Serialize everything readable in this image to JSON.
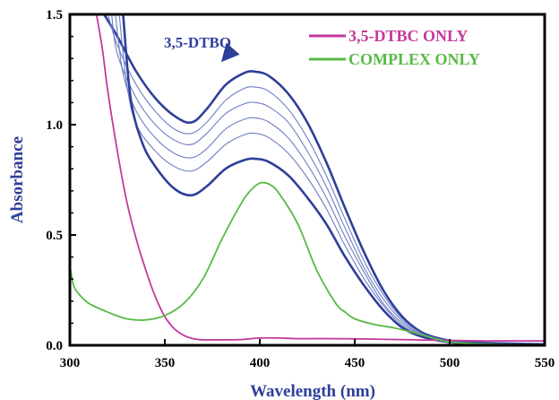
{
  "chart_data": {
    "type": "line",
    "title": "",
    "xlabel": "Wavelength (nm)",
    "ylabel": "Absorbance",
    "xlim": [
      300,
      550
    ],
    "ylim": [
      0.0,
      1.5
    ],
    "xticks": [
      300,
      350,
      400,
      450,
      500,
      550
    ],
    "yticks": [
      0.0,
      0.5,
      1.0,
      1.5
    ],
    "ytick_labels": [
      "0.0",
      "0.5",
      "1.0",
      "1.5"
    ],
    "grid": false,
    "legend_position": "top-right",
    "legend": [
      {
        "label": "3,5-DTBC ONLY",
        "color": "#c4399c"
      },
      {
        "label": "COMPLEX ONLY",
        "color": "#58b947"
      }
    ],
    "annotations": [
      {
        "text": "3,5-DTBQ",
        "arrow_target": [
          385,
          1.3
        ]
      }
    ],
    "series": [
      {
        "color": "#2e3f9a",
        "bold": true,
        "x": [
          318,
          325,
          335,
          345,
          355,
          364,
          372,
          382,
          392,
          398,
          405,
          415,
          425,
          435,
          445,
          455,
          465,
          475,
          485,
          495,
          505,
          520,
          550
        ],
        "y": [
          1.5,
          1.4,
          1.24,
          1.12,
          1.04,
          1.01,
          1.07,
          1.18,
          1.235,
          1.24,
          1.22,
          1.14,
          1.01,
          0.83,
          0.62,
          0.42,
          0.25,
          0.13,
          0.06,
          0.03,
          0.015,
          0.01,
          0.005
        ]
      },
      {
        "color": "#6e7ec4",
        "bold": false,
        "x": [
          320,
          325,
          335,
          345,
          355,
          364,
          372,
          382,
          392,
          398,
          405,
          415,
          425,
          435,
          445,
          455,
          465,
          475,
          485,
          495,
          505,
          520,
          550
        ],
        "y": [
          1.5,
          1.36,
          1.18,
          1.06,
          0.98,
          0.96,
          1.01,
          1.11,
          1.165,
          1.17,
          1.15,
          1.07,
          0.94,
          0.77,
          0.57,
          0.38,
          0.23,
          0.12,
          0.055,
          0.028,
          0.014,
          0.009,
          0.005
        ]
      },
      {
        "color": "#6e7ec4",
        "bold": false,
        "x": [
          322,
          325,
          335,
          345,
          355,
          364,
          372,
          382,
          392,
          398,
          405,
          415,
          425,
          435,
          445,
          455,
          465,
          475,
          485,
          495,
          505,
          520,
          550
        ],
        "y": [
          1.5,
          1.32,
          1.12,
          1.0,
          0.93,
          0.91,
          0.96,
          1.05,
          1.095,
          1.1,
          1.08,
          1.01,
          0.88,
          0.72,
          0.53,
          0.35,
          0.21,
          0.11,
          0.05,
          0.026,
          0.013,
          0.008,
          0.005
        ]
      },
      {
        "color": "#6e7ec4",
        "bold": false,
        "x": [
          324,
          328,
          335,
          345,
          355,
          364,
          372,
          382,
          392,
          398,
          405,
          415,
          425,
          435,
          445,
          455,
          465,
          475,
          485,
          495,
          505,
          520,
          550
        ],
        "y": [
          1.5,
          1.23,
          1.06,
          0.94,
          0.87,
          0.85,
          0.89,
          0.98,
          1.025,
          1.03,
          1.01,
          0.94,
          0.82,
          0.67,
          0.49,
          0.33,
          0.19,
          0.1,
          0.046,
          0.024,
          0.012,
          0.008,
          0.005
        ]
      },
      {
        "color": "#6e7ec4",
        "bold": false,
        "x": [
          326,
          330,
          335,
          345,
          355,
          364,
          372,
          382,
          392,
          398,
          405,
          415,
          425,
          435,
          445,
          455,
          465,
          475,
          485,
          495,
          505,
          520,
          550
        ],
        "y": [
          1.5,
          1.18,
          1.0,
          0.88,
          0.81,
          0.79,
          0.83,
          0.91,
          0.955,
          0.96,
          0.94,
          0.87,
          0.76,
          0.62,
          0.45,
          0.3,
          0.18,
          0.09,
          0.043,
          0.022,
          0.011,
          0.007,
          0.005
        ]
      },
      {
        "color": "#2e3f9a",
        "bold": true,
        "x": [
          328,
          332,
          338,
          345,
          355,
          364,
          372,
          382,
          392,
          398,
          405,
          415,
          425,
          435,
          445,
          455,
          465,
          475,
          485,
          495,
          505,
          520,
          550
        ],
        "y": [
          1.5,
          1.12,
          0.92,
          0.81,
          0.71,
          0.68,
          0.72,
          0.8,
          0.84,
          0.845,
          0.83,
          0.77,
          0.67,
          0.55,
          0.4,
          0.27,
          0.16,
          0.08,
          0.04,
          0.02,
          0.01,
          0.006,
          0.004
        ]
      },
      {
        "name": "3,5-DTBC ONLY",
        "color": "#c4399c",
        "bold": false,
        "x": [
          314,
          317,
          320,
          325,
          330,
          335,
          340,
          345,
          350,
          355,
          360,
          365,
          370,
          380,
          390,
          400,
          410,
          420,
          440,
          460,
          480,
          500,
          520,
          550
        ],
        "y": [
          1.5,
          1.35,
          1.15,
          0.88,
          0.65,
          0.48,
          0.34,
          0.22,
          0.13,
          0.075,
          0.045,
          0.03,
          0.025,
          0.025,
          0.026,
          0.033,
          0.033,
          0.03,
          0.03,
          0.028,
          0.025,
          0.022,
          0.02,
          0.02
        ]
      },
      {
        "name": "COMPLEX ONLY",
        "color": "#58b947",
        "bold": false,
        "x": [
          300,
          302,
          305,
          310,
          320,
          330,
          340,
          350,
          360,
          370,
          380,
          390,
          395,
          400,
          405,
          410,
          420,
          430,
          440,
          445,
          450,
          460,
          470,
          480,
          490,
          500,
          520,
          550
        ],
        "y": [
          0.36,
          0.27,
          0.23,
          0.19,
          0.15,
          0.12,
          0.115,
          0.135,
          0.19,
          0.3,
          0.48,
          0.64,
          0.7,
          0.735,
          0.73,
          0.69,
          0.55,
          0.34,
          0.19,
          0.15,
          0.12,
          0.095,
          0.08,
          0.06,
          0.035,
          0.015,
          0.005,
          0.003
        ]
      }
    ]
  }
}
